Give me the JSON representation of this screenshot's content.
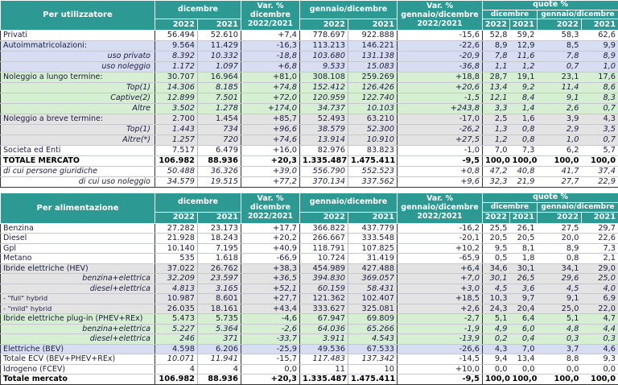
{
  "colors": {
    "header_teal": "#2c9a93",
    "header_text": "#ffffff",
    "band_lavender": "#d9ddf1",
    "band_green": "#d6eed1",
    "band_gray": "#e4e3e3",
    "text_navy": "#1b1b40"
  },
  "header": {
    "dicembre": "dicembre",
    "gennaio_dicembre": "gennaio/dicembre",
    "var_dicembre": "Var. %\ndicembre\n2022/2021",
    "var_gennaio_dicembre": "Var. %\ngennaio/dicembre\n2022/2021",
    "quote": "quote %",
    "y2022": "2022",
    "y2021": "2021"
  },
  "tables": [
    {
      "title": "Per utilizzatore",
      "rows": [
        {
          "label": "Privati",
          "bg": "white",
          "la": "left",
          "values": [
            "56.494",
            "52.610",
            "+7,4",
            "778.697",
            "922.888",
            "-15,6",
            "52,8",
            "59,2",
            "58,3",
            "62,6"
          ]
        },
        {
          "label": "Autoimmatricolazioni:",
          "bg": "lav",
          "la": "left",
          "values": [
            "9.564",
            "11.429",
            "-16,3",
            "113.213",
            "146.221",
            "-22,6",
            "8,9",
            "12,9",
            "8,5",
            "9,9"
          ]
        },
        {
          "label": "uso privato",
          "bg": "lav",
          "la": "right",
          "italic": true,
          "values": [
            "8.392",
            "10.332",
            "-18,8",
            "103.680",
            "131.138",
            "-20,9",
            "7,8",
            "11,6",
            "7,8",
            "8,9"
          ]
        },
        {
          "label": "uso noleggio",
          "bg": "lav",
          "la": "right",
          "italic": true,
          "values": [
            "1.172",
            "1.097",
            "+6,8",
            "9.533",
            "15.083",
            "-36,8",
            "1,1",
            "1,2",
            "0,7",
            "1,0"
          ]
        },
        {
          "label": "Noleggio a lungo termine:",
          "bg": "grn",
          "la": "left",
          "values": [
            "30.707",
            "16.964",
            "+81,0",
            "308.108",
            "259.269",
            "+18,8",
            "28,7",
            "19,1",
            "23,1",
            "17,6"
          ]
        },
        {
          "label": "Top(1)",
          "bg": "grn",
          "la": "right",
          "italic": true,
          "values": [
            "14.306",
            "8.185",
            "+74,8",
            "152.412",
            "126.426",
            "+20,6",
            "13,4",
            "9,2",
            "11,4",
            "8,6"
          ]
        },
        {
          "label": "Captive(2)",
          "bg": "grn",
          "la": "right",
          "italic": true,
          "values": [
            "12.899",
            "7.501",
            "+72,0",
            "120.959",
            "122.740",
            "-1,5",
            "12,1",
            "8,4",
            "9,1",
            "8,3"
          ]
        },
        {
          "label": "Altre",
          "bg": "grn",
          "la": "right",
          "italic": true,
          "values": [
            "3.502",
            "1.278",
            "+174,0",
            "34.737",
            "10.103",
            "+243,8",
            "3,3",
            "1,4",
            "2,6",
            "0,7"
          ]
        },
        {
          "label": "Noleggio a breve termine:",
          "bg": "gry",
          "la": "left",
          "values": [
            "2.700",
            "1.454",
            "+85,7",
            "52.493",
            "63.210",
            "-17,0",
            "2,5",
            "1,6",
            "3,9",
            "4,3"
          ]
        },
        {
          "label": "Top(1)",
          "bg": "gry",
          "la": "right",
          "italic": true,
          "values": [
            "1.443",
            "734",
            "+96,6",
            "38.579",
            "52.300",
            "-26,2",
            "1,3",
            "0,8",
            "2,9",
            "3,5"
          ]
        },
        {
          "label": "Altre(*)",
          "bg": "gry",
          "la": "right",
          "italic": true,
          "values": [
            "1.257",
            "720",
            "+74,6",
            "13.914",
            "10.910",
            "+27,5",
            "1,2",
            "0,8",
            "1,0",
            "0,7"
          ]
        },
        {
          "label": "Societa ed Enti",
          "bg": "white",
          "la": "left",
          "values": [
            "7.517",
            "6.479",
            "+16,0",
            "82.976",
            "83.823",
            "-1,0",
            "7,0",
            "7,3",
            "6,2",
            "5,7"
          ]
        },
        {
          "label": "TOTALE MERCATO",
          "bg": "white",
          "la": "left",
          "bold": true,
          "values": [
            "106.982",
            "88.936",
            "+20,3",
            "1.335.487",
            "1.475.411",
            "-9,5",
            "100,0",
            "100,0",
            "100,0",
            "100,0"
          ]
        },
        {
          "label": "di cui persone giuridiche",
          "bg": "white",
          "la": "left",
          "italic": true,
          "values": [
            "50.488",
            "36.326",
            "+39,0",
            "556.790",
            "552.523",
            "+0,8",
            "47,2",
            "40,8",
            "41,7",
            "37,4"
          ]
        },
        {
          "label": "di cui uso noleggio",
          "bg": "white",
          "la": "right",
          "italic": true,
          "values": [
            "34.579",
            "19.515",
            "+77,2",
            "370.134",
            "337.562",
            "+9,6",
            "32,3",
            "21,9",
            "27,7",
            "22,9"
          ]
        }
      ]
    },
    {
      "title": "Per alimentazione",
      "rows": [
        {
          "label": "Benzina",
          "bg": "white",
          "la": "left",
          "values": [
            "27.282",
            "23.173",
            "+17,7",
            "366.822",
            "437.779",
            "-16,2",
            "25,5",
            "26,1",
            "27,5",
            "29,7"
          ]
        },
        {
          "label": "Diesel",
          "bg": "white",
          "la": "left",
          "values": [
            "21.928",
            "18.243",
            "+20,2",
            "266.667",
            "333.548",
            "-20,1",
            "20,5",
            "20,5",
            "20,0",
            "22,6"
          ]
        },
        {
          "label": "Gpl",
          "bg": "white",
          "la": "left",
          "values": [
            "10.140",
            "7.195",
            "+40,9",
            "118.791",
            "107.825",
            "+10,2",
            "9,5",
            "8,1",
            "8,9",
            "7,3"
          ]
        },
        {
          "label": "Metano",
          "bg": "white",
          "la": "left",
          "values": [
            "535",
            "1.618",
            "-66,9",
            "10.724",
            "31.419",
            "-65,9",
            "0,5",
            "1,8",
            "0,8",
            "2,1"
          ]
        },
        {
          "label": "Ibride elettriche (HEV)",
          "bg": "gry",
          "la": "left",
          "values": [
            "37.022",
            "26.762",
            "+38,3",
            "454.989",
            "427.488",
            "+6,4",
            "34,6",
            "30,1",
            "34,1",
            "29,0"
          ]
        },
        {
          "label": "benzina+elettrica",
          "bg": "gry",
          "la": "right",
          "italic": true,
          "values": [
            "32.209",
            "23.597",
            "+36,5",
            "394.830",
            "369.057",
            "+7,0",
            "30,1",
            "26,5",
            "29,6",
            "25,0"
          ]
        },
        {
          "label": "diesel+elettrica",
          "bg": "gry",
          "la": "right",
          "italic": true,
          "values": [
            "4.813",
            "3.165",
            "+52,1",
            "60.159",
            "58.431",
            "+3,0",
            "4,5",
            "3,6",
            "4,5",
            "4,0"
          ]
        },
        {
          "label": "- \"full\" hybrid",
          "bg": "gry",
          "la": "left",
          "small": true,
          "values": [
            "10.987",
            "8.601",
            "+27,7",
            "121.362",
            "102.407",
            "+18,5",
            "10,3",
            "9,7",
            "9,1",
            "6,9"
          ]
        },
        {
          "label": "- \"mild\" hybrid",
          "bg": "gry",
          "la": "left",
          "small": true,
          "values": [
            "26.035",
            "18.161",
            "+43,4",
            "333.627",
            "325.081",
            "+2,6",
            "24,3",
            "20,4",
            "25,0",
            "22,0"
          ]
        },
        {
          "label": "Ibride elettriche plug-in (PHEV+REx)",
          "bg": "grn",
          "la": "left",
          "values": [
            "5.473",
            "5.735",
            "-4,6",
            "67.947",
            "69.809",
            "-2,7",
            "5,1",
            "6,4",
            "5,1",
            "4,7"
          ]
        },
        {
          "label": "benzina+elettrica",
          "bg": "grn",
          "la": "right",
          "italic": true,
          "values": [
            "5.227",
            "5.364",
            "-2,6",
            "64.036",
            "65.266",
            "-1,9",
            "4,9",
            "6,0",
            "4,8",
            "4,4"
          ]
        },
        {
          "label": "diesel+elettrica",
          "bg": "grn",
          "la": "right",
          "italic": true,
          "values": [
            "246",
            "371",
            "-33,7",
            "3.911",
            "4.543",
            "-13,9",
            "0,2",
            "0,4",
            "0,3",
            "0,3"
          ]
        },
        {
          "label": "Elettriche (BEV)",
          "bg": "lav",
          "la": "left",
          "values": [
            "4.598",
            "6.206",
            "-25,9",
            "49.536",
            "67.533",
            "-26,6",
            "4,3",
            "7,0",
            "3,7",
            "4,6"
          ]
        },
        {
          "label": "Totale ECV (BEV+PHEV+REx)",
          "bg": "white",
          "la": "left",
          "iv": true,
          "values": [
            "10.071",
            "11.941",
            "-15,7",
            "117.483",
            "137.342",
            "-14,5",
            "9,4",
            "13,4",
            "8,8",
            "9,3"
          ]
        },
        {
          "label": "Idrogeno (FCEV)",
          "bg": "white",
          "la": "left",
          "values": [
            "4",
            "4",
            "0,0",
            "11",
            "10",
            "+10,0",
            "0,0",
            "0,0",
            "0,0",
            "0,0"
          ]
        },
        {
          "label": "Totale mercato",
          "bg": "white",
          "la": "left",
          "bold": true,
          "values": [
            "106.982",
            "88.936",
            "+20,3",
            "1.335.487",
            "1.475.411",
            "-9,5",
            "100,0",
            "100,0",
            "100,0",
            "100,0"
          ]
        }
      ]
    }
  ]
}
